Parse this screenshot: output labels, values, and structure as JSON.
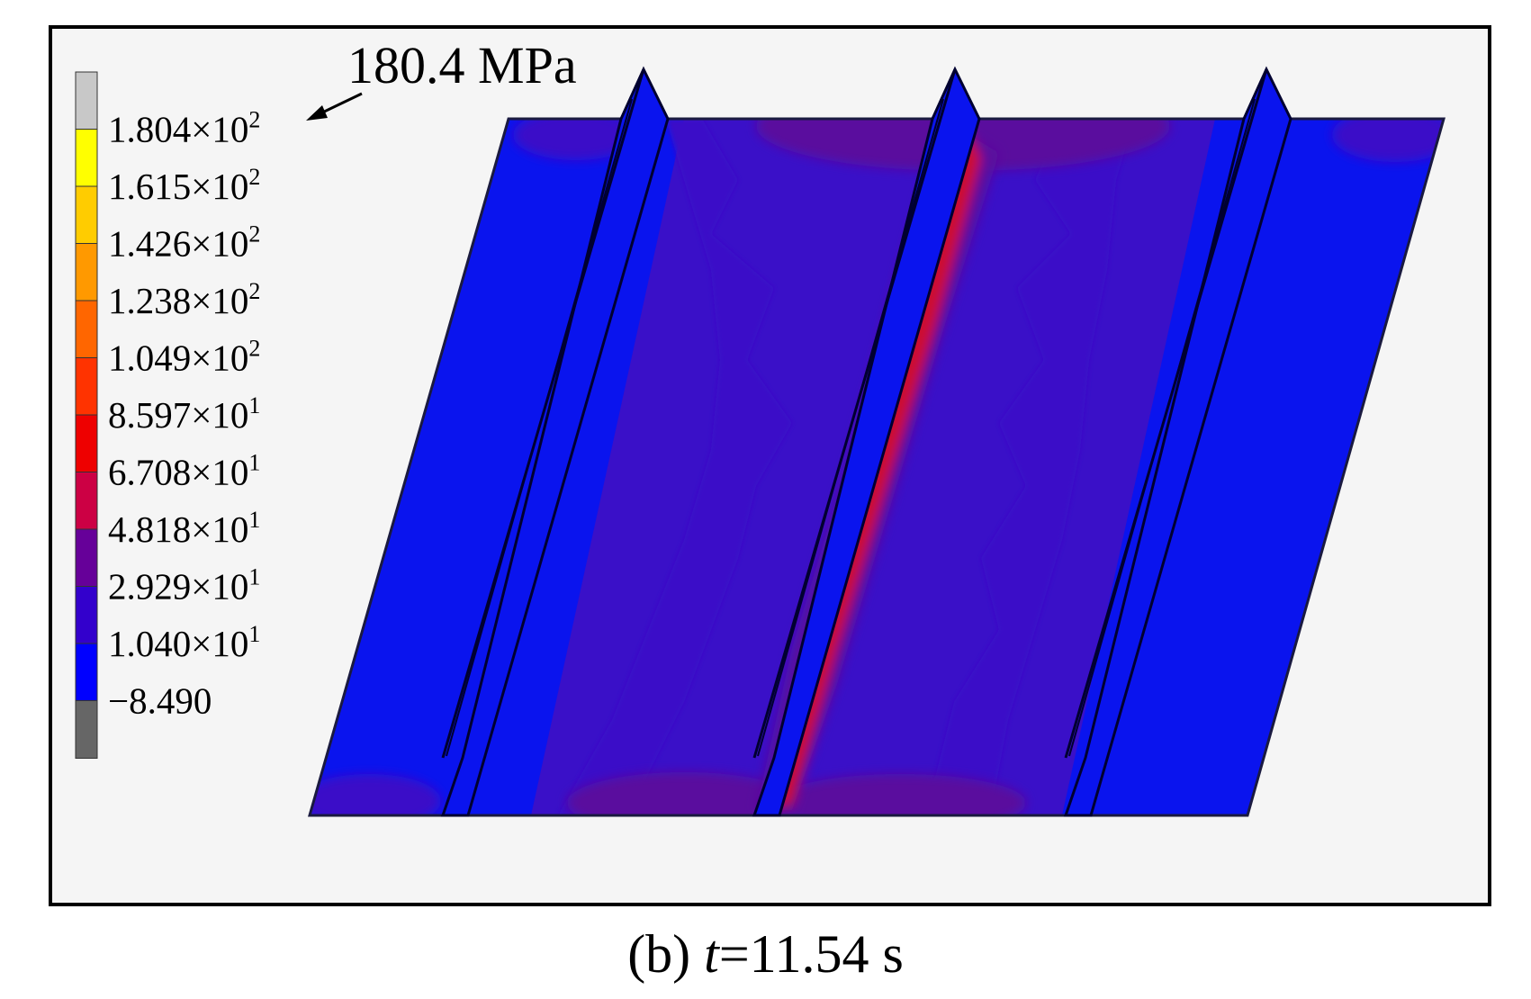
{
  "figure": {
    "annotation": "180.4 MPa",
    "caption": {
      "label": "(b)",
      "variable": "t",
      "value": "=11.54 s"
    }
  },
  "legend": {
    "entries": [
      {
        "mantissa": "1.804",
        "times": "×10",
        "exp": "2"
      },
      {
        "mantissa": "1.615",
        "times": "×10",
        "exp": "2"
      },
      {
        "mantissa": "1.426",
        "times": "×10",
        "exp": "2"
      },
      {
        "mantissa": "1.238",
        "times": "×10",
        "exp": "2"
      },
      {
        "mantissa": "1.049",
        "times": "×10",
        "exp": "2"
      },
      {
        "mantissa": "8.597",
        "times": "×10",
        "exp": "1"
      },
      {
        "mantissa": "6.708",
        "times": "×10",
        "exp": "1"
      },
      {
        "mantissa": "4.818",
        "times": "×10",
        "exp": "1"
      },
      {
        "mantissa": "2.929",
        "times": "×10",
        "exp": "1"
      },
      {
        "mantissa": "1.040",
        "times": "×10",
        "exp": "1"
      },
      {
        "mantissa": "−8.490",
        "times": "",
        "exp": ""
      }
    ],
    "colors": [
      "#c8c8c8",
      "#ffff00",
      "#ffcc00",
      "#ff9900",
      "#ff6600",
      "#ff3300",
      "#ee0000",
      "#cc0044",
      "#660099",
      "#3300cc",
      "#0000ff",
      "#666666"
    ]
  },
  "colors": {
    "frame_background": "#f5f5f5",
    "base_blue": "#0a14ee",
    "band_blue": "#3a10c8",
    "band_purple": "#5a0c9e",
    "heat_red": "#cc1030",
    "weld_yellow": "#ffd200"
  }
}
